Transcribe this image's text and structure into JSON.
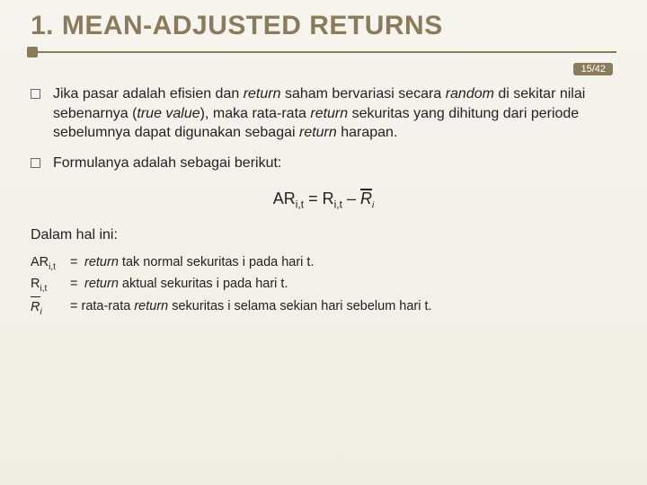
{
  "page": {
    "number": "15/42"
  },
  "title": "1. MEAN-ADJUSTED RETURNS",
  "bullets": {
    "b1": {
      "t1": "Jika pasar adalah efisien dan ",
      "i1": "return",
      "t2": " saham bervariasi secara ",
      "i2": "random",
      "t3": " di sekitar nilai sebenarnya (",
      "i3": "true value",
      "t4": "), maka rata-rata ",
      "i4": "return",
      "t5": " sekuritas yang dihitung dari periode sebelumnya dapat digunakan sebagai ",
      "i5": "return",
      "t6": " harapan."
    },
    "b2": {
      "t1": "Formulanya adalah sebagai berikut:"
    }
  },
  "formula": {
    "lhs": "AR",
    "lhs_sub": "i,t",
    "eq": " = ",
    "rhs1": "R",
    "rhs1_sub": "i,t",
    "minus": " – ",
    "rbar_R": "R",
    "rbar_i": "i"
  },
  "section_label": "Dalam hal ini:",
  "defs": {
    "d1": {
      "term_main": "AR",
      "term_sub": "i,t",
      "desc_i": "return",
      "desc_t": " tak normal sekuritas i  pada hari t."
    },
    "d2": {
      "term_main": "R",
      "term_sub": "i,t",
      "desc_i": "return",
      "desc_t": " aktual sekuritas i pada hari t."
    },
    "d3": {
      "pre": "= rata-rata ",
      "desc_i": "return",
      "desc_t": " sekuritas i selama sekian hari sebelum hari t."
    }
  },
  "colors": {
    "accent": "#8a7b5c",
    "bg": "#f4f2ec",
    "text": "#222222"
  }
}
